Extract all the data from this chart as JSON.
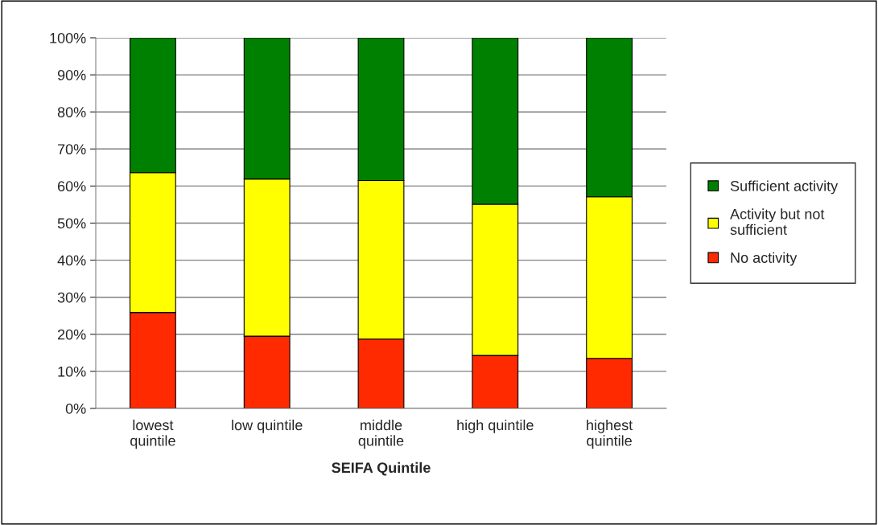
{
  "chart_data": {
    "type": "bar",
    "stacked": true,
    "xlabel": "SEIFA Quintile",
    "categories": [
      "lowest\nquintile",
      "low quintile",
      "middle\nquintile",
      "high quintile",
      "highest\nquintile"
    ],
    "series": [
      {
        "name": "No activity",
        "color": "#ff2a00",
        "values": [
          25.9,
          19.5,
          18.7,
          14.3,
          13.5
        ]
      },
      {
        "name": "Activity but not\nsufficient",
        "color": "#ffff00",
        "values": [
          37.7,
          42.4,
          42.8,
          40.8,
          43.6
        ]
      },
      {
        "name": "Sufficient activity",
        "color": "#008000",
        "values": [
          36.4,
          38.1,
          38.5,
          44.9,
          42.9
        ]
      }
    ],
    "ylim": [
      0,
      100
    ],
    "yticks": [
      {
        "value": 0,
        "label": "0%"
      },
      {
        "value": 10,
        "label": "10%"
      },
      {
        "value": 20,
        "label": "20%"
      },
      {
        "value": 30,
        "label": "30%"
      },
      {
        "value": 40,
        "label": "40%"
      },
      {
        "value": 50,
        "label": "50%"
      },
      {
        "value": 60,
        "label": "60%"
      },
      {
        "value": 70,
        "label": "70%"
      },
      {
        "value": 80,
        "label": "80%"
      },
      {
        "value": 90,
        "label": "90%"
      },
      {
        "value": 100,
        "label": "100%"
      }
    ],
    "grid": "y",
    "legend": "right"
  }
}
